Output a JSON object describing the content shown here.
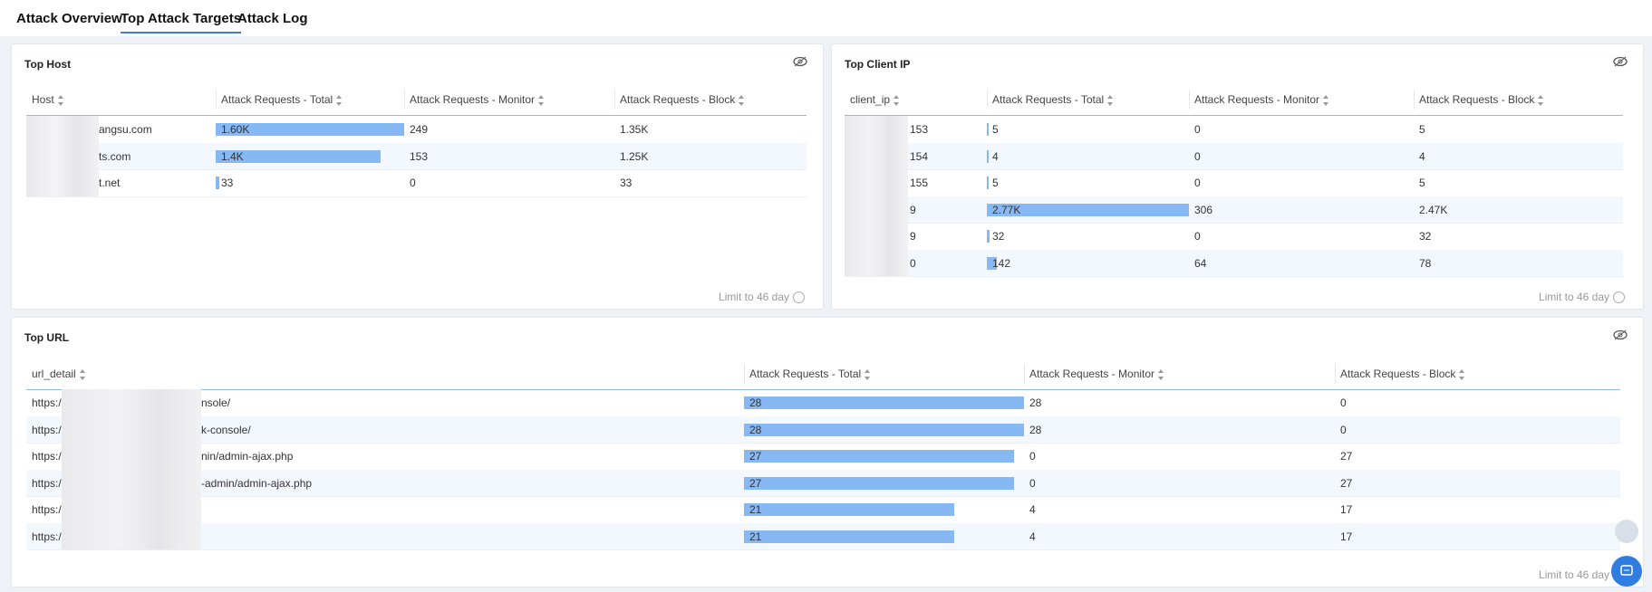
{
  "tabs": [
    "Attack Overview",
    "Top Attack Targets",
    "Attack Log"
  ],
  "active_tab": 1,
  "panels": [
    {
      "title": "Top Host",
      "columns": [
        "Host",
        "Attack Requests - Total",
        "Attack Requests - Monitor",
        "Attack Requests - Block"
      ],
      "rows": [
        {
          "key": "angsu.com",
          "total": 1600,
          "total_label": "1.60K",
          "monitor": 249,
          "block": "1.35K"
        },
        {
          "key": "ts.com",
          "total": 1400,
          "total_label": "1.4K",
          "monitor": 153,
          "block": "1.25K"
        },
        {
          "key": "t.net",
          "total": 33,
          "monitor": 0,
          "block": 33
        }
      ],
      "footer": "Limit to 46 day"
    },
    {
      "title": "Top Client IP",
      "columns": [
        "client_ip",
        "Attack Requests - Total",
        "Attack Requests - Monitor",
        "Attack Requests - Block"
      ],
      "rows": [
        {
          "key": "153",
          "total": 5,
          "monitor": 0,
          "block": 5
        },
        {
          "key": "154",
          "total": 4,
          "monitor": 0,
          "block": 4
        },
        {
          "key": "155",
          "total": 5,
          "monitor": 0,
          "block": 5
        },
        {
          "key": "9",
          "total": 2770,
          "total_label": "2.77K",
          "monitor": 306,
          "block": "2.47K"
        },
        {
          "key": "9",
          "total": 32,
          "monitor": 0,
          "block": 32
        },
        {
          "key": "0",
          "total": 142,
          "monitor": 64,
          "block": 78
        }
      ],
      "footer": "Limit to 46 day"
    },
    {
      "title": "Top URL",
      "columns": [
        "url_detail",
        "Attack Requests - Total",
        "Attack Requests - Monitor",
        "Attack Requests - Block"
      ],
      "rows": [
        {
          "prefix": "https:/",
          "key": "nsole/",
          "total": 28,
          "monitor": 28,
          "block": 0
        },
        {
          "prefix": "https:/",
          "key": "k-console/",
          "total": 28,
          "monitor": 28,
          "block": 0
        },
        {
          "prefix": "https:/",
          "key": "nin/admin-ajax.php",
          "total": 27,
          "monitor": 0,
          "block": 27
        },
        {
          "prefix": "https:/",
          "key": "-admin/admin-ajax.php",
          "total": 27,
          "monitor": 0,
          "block": 27
        },
        {
          "prefix": "https:/",
          "total": 21,
          "monitor": 4,
          "block": 17
        },
        {
          "prefix": "https:/",
          "total": 21,
          "monitor": 4,
          "block": 17
        }
      ],
      "footer": "Limit to 46 day"
    }
  ]
}
